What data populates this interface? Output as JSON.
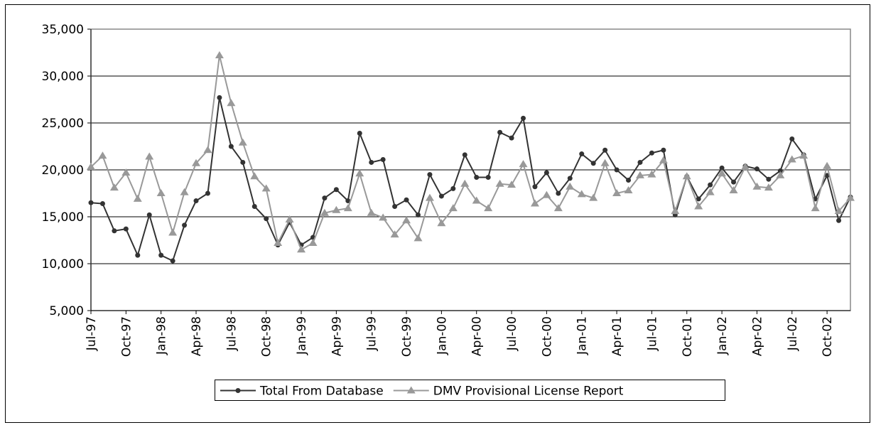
{
  "chart_data": {
    "type": "line",
    "categories": [
      "Jul-97",
      null,
      null,
      "Oct-97",
      null,
      null,
      "Jan-98",
      null,
      null,
      "Apr-98",
      null,
      null,
      "Jul-98",
      null,
      null,
      "Oct-98",
      null,
      null,
      "Jan-99",
      null,
      null,
      "Apr-99",
      null,
      null,
      "Jul-99",
      null,
      null,
      "Oct-99",
      null,
      null,
      "Jan-00",
      null,
      null,
      "Apr-00",
      null,
      null,
      "Jul-00",
      null,
      null,
      "Oct-00",
      null,
      null,
      "Jan-01",
      null,
      null,
      "Apr-01",
      null,
      null,
      "Jul-01",
      null,
      null,
      "Oct-01",
      null,
      null,
      "Jan-02",
      null,
      null,
      "Apr-02",
      null,
      null,
      "Jul-02",
      null,
      null,
      "Oct-02",
      null,
      null
    ],
    "series": [
      {
        "name": "Total From Database",
        "color": "#333333",
        "marker": "circle",
        "values": [
          16500,
          16400,
          13500,
          13700,
          10900,
          15200,
          10900,
          10300,
          14100,
          16700,
          17500,
          27700,
          22500,
          20800,
          16100,
          14800,
          12000,
          14400,
          12000,
          12800,
          17000,
          17900,
          16700,
          23900,
          20800,
          21100,
          16100,
          16800,
          15200,
          19500,
          17200,
          18000,
          21600,
          19200,
          19200,
          24000,
          23400,
          25500,
          18200,
          19700,
          17500,
          19100,
          21700,
          20700,
          22100,
          20000,
          18900,
          20800,
          21800,
          22100,
          15200,
          19300,
          16900,
          18400,
          20200,
          18700,
          20400,
          20100,
          19000,
          19900,
          23300,
          21600,
          16900,
          19400,
          14600,
          17100
        ]
      },
      {
        "name": "DMV Provisional License Report",
        "color": "#999999",
        "marker": "triangle",
        "values": [
          20300,
          21500,
          18100,
          19700,
          16900,
          21400,
          17500,
          13300,
          17600,
          20700,
          22100,
          32200,
          27100,
          22900,
          19300,
          18000,
          12200,
          14700,
          11500,
          12200,
          15400,
          15700,
          15900,
          19600,
          15400,
          14900,
          13100,
          14600,
          12700,
          17000,
          14300,
          15900,
          18500,
          16700,
          15900,
          18500,
          18400,
          20600,
          16400,
          17300,
          15900,
          18200,
          17400,
          17000,
          20700,
          17500,
          17800,
          19400,
          19500,
          21000,
          15600,
          19300,
          16100,
          17600,
          19600,
          17800,
          20300,
          18200,
          18100,
          19400,
          21100,
          21500,
          15900,
          20400,
          15600,
          17000
        ]
      }
    ],
    "ylim": [
      5000,
      35000
    ],
    "yticks": [
      {
        "value": 5000,
        "label": "5,000"
      },
      {
        "value": 10000,
        "label": "10,000"
      },
      {
        "value": 15000,
        "label": "15,000"
      },
      {
        "value": 20000,
        "label": "20,000"
      },
      {
        "value": 25000,
        "label": "25,000"
      },
      {
        "value": 30000,
        "label": "30,000"
      },
      {
        "value": 35000,
        "label": "35,000"
      }
    ],
    "grid": true,
    "legend": "bottom"
  }
}
